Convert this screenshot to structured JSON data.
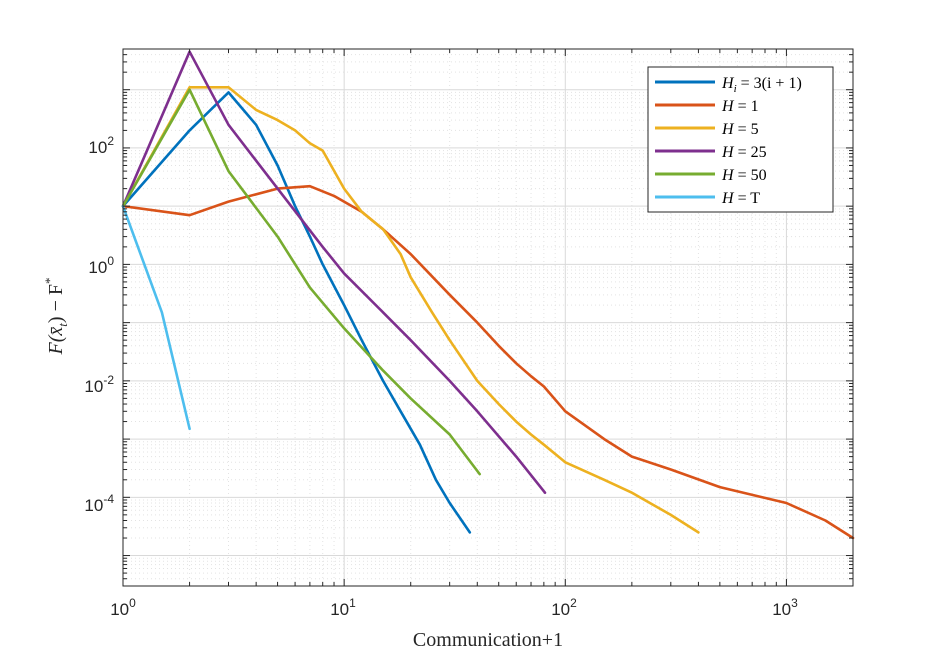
{
  "chart_data": {
    "type": "line",
    "xscale": "log",
    "yscale": "log",
    "xlabel": "Communication+1",
    "ylabel": "F(x̄_t) − F*",
    "ylabel_parts": {
      "main": "F(x̄",
      "sub": "t",
      "mid": ") − F",
      "sup": "*"
    },
    "xlim": [
      1,
      2000
    ],
    "ylim": [
      3e-06,
      5000
    ],
    "grid": true,
    "legend_position": "top-right",
    "x_ticks": [
      {
        "base": "10",
        "exp": "0"
      },
      {
        "base": "10",
        "exp": "1"
      },
      {
        "base": "10",
        "exp": "2"
      },
      {
        "base": "10",
        "exp": "3"
      }
    ],
    "y_ticks": [
      {
        "base": "10",
        "exp": "-4"
      },
      {
        "base": "10",
        "exp": "-2"
      },
      {
        "base": "10",
        "exp": "0"
      },
      {
        "base": "10",
        "exp": "2"
      }
    ],
    "series": [
      {
        "name": "H_i = 3(i + 1)",
        "color": "#0072BD",
        "x": [
          1,
          2,
          3,
          4,
          5,
          6,
          7,
          8,
          10,
          12,
          15,
          18,
          22,
          26,
          30,
          37
        ],
        "y": [
          10,
          200,
          900,
          250,
          50,
          10,
          3,
          1,
          0.2,
          0.05,
          0.01,
          0.003,
          0.0008,
          0.0002,
          8e-05,
          2.5e-05
        ]
      },
      {
        "name": "H = 1",
        "color": "#D95319",
        "x": [
          1,
          2,
          3,
          5,
          7,
          9,
          12,
          15,
          20,
          30,
          40,
          50,
          60,
          70,
          80,
          100,
          150,
          200,
          300,
          500,
          1000,
          1500,
          2000
        ],
        "y": [
          10,
          7,
          12,
          20,
          22,
          15,
          8,
          4,
          1.5,
          0.3,
          0.1,
          0.04,
          0.02,
          0.012,
          0.008,
          0.003,
          0.001,
          0.0005,
          0.0003,
          0.00015,
          8e-05,
          4e-05,
          2e-05
        ]
      },
      {
        "name": "H = 5",
        "color": "#EDB120",
        "x": [
          1,
          2,
          3,
          4,
          5,
          6,
          7,
          8,
          10,
          12,
          15,
          18,
          20,
          25,
          30,
          40,
          50,
          60,
          70,
          80,
          100,
          150,
          200,
          300,
          400
        ],
        "y": [
          10,
          1100,
          1100,
          450,
          300,
          200,
          120,
          90,
          20,
          8,
          4,
          1.5,
          0.6,
          0.15,
          0.05,
          0.01,
          0.004,
          0.002,
          0.0012,
          0.0008,
          0.0004,
          0.0002,
          0.00012,
          5e-05,
          2.5e-05
        ]
      },
      {
        "name": "H = 25",
        "color": "#7E2F8E",
        "x": [
          1,
          2,
          3,
          5,
          8,
          10,
          15,
          20,
          30,
          40,
          60,
          81
        ],
        "y": [
          10,
          4500,
          250,
          20,
          2,
          0.7,
          0.15,
          0.05,
          0.01,
          0.003,
          0.0005,
          0.00012
        ]
      },
      {
        "name": "H = 50",
        "color": "#77AC30",
        "x": [
          1,
          2,
          3,
          5,
          7,
          10,
          15,
          20,
          30,
          41
        ],
        "y": [
          10,
          1000,
          40,
          3,
          0.4,
          0.08,
          0.015,
          0.005,
          0.0012,
          0.00025
        ]
      },
      {
        "name": "H = T",
        "color": "#4DBEEE",
        "x": [
          1,
          1.5,
          2
        ],
        "y": [
          10,
          0.15,
          0.0015
        ]
      }
    ],
    "legend": [
      {
        "label": "H_i = 3(i + 1)",
        "parts": {
          "main": "H",
          "sub": "i",
          "rest": " = 3(i + 1)"
        }
      },
      {
        "label": "H = 1",
        "parts": {
          "main": "H",
          "sub": "",
          "rest": " = 1"
        }
      },
      {
        "label": "H = 5",
        "parts": {
          "main": "H",
          "sub": "",
          "rest": " = 5"
        }
      },
      {
        "label": "H = 25",
        "parts": {
          "main": "H",
          "sub": "",
          "rest": " = 25"
        }
      },
      {
        "label": "H = 50",
        "parts": {
          "main": "H",
          "sub": "",
          "rest": " = 50"
        }
      },
      {
        "label": "H = T",
        "parts": {
          "main": "H",
          "sub": "",
          "rest": " = T"
        }
      }
    ]
  }
}
